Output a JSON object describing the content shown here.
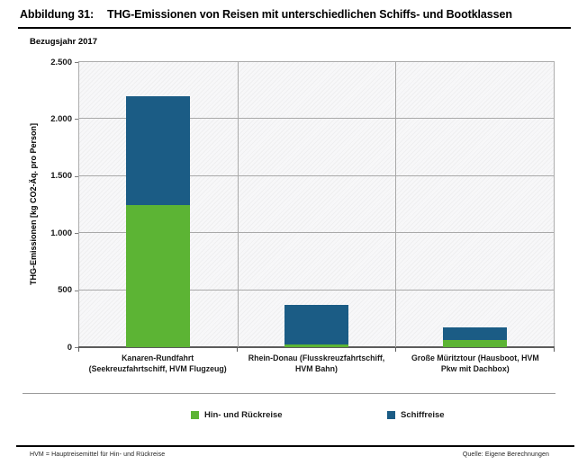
{
  "header": {
    "figure_label": "Abbildung 31:",
    "title": "THG-Emissionen von Reisen mit unterschiedlichen Schiffs- und Bootklassen"
  },
  "subtitle": "Bezugsjahr 2017",
  "footnote": "HVM = Hauptreisemittel für Hin- und Rückreise",
  "source": "Quelle: Eigene Berechnungen",
  "chart_data": {
    "type": "bar",
    "stacked": true,
    "subtitle": "Bezugsjahr 2017",
    "categories": [
      [
        "Kanaren-Rundfahrt",
        "(Seekreuzfahrtschiff, HVM Flugzeug)"
      ],
      [
        "Rhein-Donau (Flusskreuzfahrtschiff,",
        "HVM Bahn)"
      ],
      [
        "Große Müritztour (Hausboot, HVM",
        "Pkw mit Dachbox)"
      ]
    ],
    "series": [
      {
        "name": "Hin- und Rückreise",
        "color": "#5cb434",
        "values": [
          1250,
          20,
          65
        ]
      },
      {
        "name": "Schiffreise",
        "color": "#1b5c85",
        "values": [
          950,
          350,
          110
        ]
      }
    ],
    "totals": [
      2200,
      370,
      175
    ],
    "xlabel": "",
    "ylabel": "THG-Emissionen [kg CO2-Äq. pro Person]",
    "ylim": [
      0,
      2500
    ],
    "yticks": [
      0,
      500,
      1000,
      1500,
      2000,
      2500
    ],
    "ytick_labels": [
      "0",
      "500",
      "1.000",
      "1.500",
      "2.000",
      "2.500"
    ],
    "grid": true,
    "plot_background": "light diagonal hatch",
    "gridline_color": "#a9a9a9",
    "legend_position": "bottom"
  }
}
